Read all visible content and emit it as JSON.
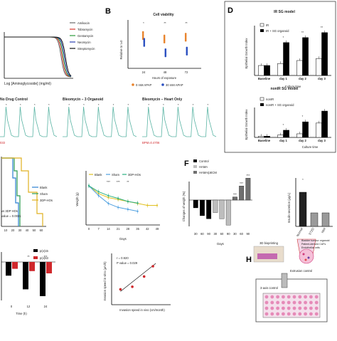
{
  "figure": {
    "panel_letters": {
      "B": "B",
      "D": "D",
      "F": "F",
      "H": "H"
    }
  },
  "chart_data": [
    {
      "panel": "A",
      "type": "line",
      "xlabel": "Log [Aminoglycoside] (mg/ml)",
      "series": [
        {
          "name": "Amikacin",
          "color": "#6b6b6b"
        },
        {
          "name": "Tobramycin",
          "color": "#d9342b"
        },
        {
          "name": "Gentamycin",
          "color": "#2b9b3a"
        },
        {
          "name": "Neomycin",
          "color": "#2a3fb0"
        },
        {
          "name": "Streptomycin",
          "color": "#111111"
        }
      ]
    },
    {
      "panel": "B",
      "type": "scatter",
      "title": "Cell viability",
      "xlabel": "Hours of exposure",
      "ylabel": "Relative to t=0",
      "categories": [
        "24",
        "48",
        "72"
      ],
      "significance": [
        "*",
        "**",
        "**"
      ],
      "series": [
        {
          "name": "0 mM APAP",
          "color": "#e8822a",
          "values": [
            0.95,
            0.85,
            0.9
          ]
        },
        {
          "name": "30 mM APAP",
          "color": "#2a4fc0",
          "values": [
            0.75,
            0.45,
            0.5
          ]
        }
      ],
      "ylim": [
        0,
        1.4
      ]
    },
    {
      "panel": "C",
      "type": "line",
      "titles": [
        "No Drug Control",
        "Bleomycin – 3 Organoid",
        "Bleomycin – Heart Only"
      ],
      "footers": [
        "033",
        "BPM=0.4706",
        ""
      ],
      "color": "#5ab4a4"
    },
    {
      "panel": "D1",
      "type": "bar",
      "title": "IR SG model",
      "ylabel": "Epithelial Growth Index",
      "xlabel": "Culture time",
      "categories": [
        "Baseline",
        "day 1",
        "day 2",
        "day 3"
      ],
      "series": [
        {
          "name": "IR",
          "color": "#ffffff",
          "values": [
            1.0,
            1.2,
            1.5,
            1.7
          ]
        },
        {
          "name": "IR + SG organoid",
          "color": "#000000",
          "values": [
            1.0,
            3.3,
            3.8,
            4.3
          ]
        }
      ],
      "significance": [
        "",
        "*",
        "**",
        "**"
      ],
      "ylim": [
        0,
        5
      ]
    },
    {
      "panel": "D2",
      "type": "bar",
      "title": "nonIR SG model",
      "ylabel": "Epithelial Growth Index",
      "xlabel": "Culture time",
      "categories": [
        "Baseline",
        "day 1",
        "day 2",
        "day 3"
      ],
      "series": [
        {
          "name": "nonIR",
          "color": "#ffffff",
          "values": [
            1.0,
            2.0,
            3.0,
            12.0
          ]
        },
        {
          "name": "nonIR + SG organoid",
          "color": "#000000",
          "values": [
            1.0,
            6.0,
            13.0,
            22.0
          ]
        }
      ],
      "significance": [
        "",
        "*",
        "*",
        ""
      ],
      "ylim": [
        0,
        25
      ]
    },
    {
      "panel": "E1",
      "type": "line",
      "series": [
        {
          "name": "Blank",
          "color": "#2a7fd0"
        },
        {
          "name": "Sham",
          "color": "#2a9b50"
        },
        {
          "name": "3DP-HOs",
          "color": "#e0b020"
        }
      ],
      "annotations": [
        "vs 3DP HOs",
        "value = 0.0031"
      ],
      "x_ticks": [
        "10",
        "20",
        "30",
        "40",
        "50",
        "60"
      ]
    },
    {
      "panel": "E2",
      "type": "line",
      "ylabel": "Weight (g)",
      "xlabel": "Days",
      "x": [
        0,
        7,
        14,
        21,
        28,
        35,
        42,
        49
      ],
      "x_ticks": [
        "0",
        "7",
        "14",
        "21",
        "28",
        "35",
        "42",
        "49"
      ],
      "series": [
        {
          "name": "Blank",
          "color": "#e0c020",
          "values": [
            25,
            23,
            22,
            21.5,
            21,
            20.5,
            20,
            20
          ]
        },
        {
          "name": "Sham",
          "color": "#4fa0e0",
          "values": [
            25,
            22.5,
            20.5,
            19.5,
            19,
            18.5,
            null,
            null
          ]
        },
        {
          "name": "3DP-HOs",
          "color": "#2ab080",
          "values": [
            25,
            23.5,
            22.5,
            21.8,
            21,
            20.6,
            null,
            null
          ]
        }
      ],
      "significance": [
        "***",
        "***",
        "**"
      ]
    },
    {
      "panel": "F1",
      "type": "bar",
      "ylabel": "Changes of weight (%)",
      "xlabel": "Days",
      "x_ticks": [
        "30",
        "60",
        "90",
        "30",
        "60",
        "90",
        "30",
        "60",
        "90"
      ],
      "series": [
        {
          "name": "Control",
          "color": "#000000",
          "values": [
            -5,
            -10,
            -12
          ]
        },
        {
          "name": "HAMA",
          "color": "#bdbdbd",
          "values": [
            -8,
            -12,
            -16
          ]
        },
        {
          "name": "HAMA/pECM",
          "color": "#6f6f6f",
          "values": [
            2,
            9,
            14
          ]
        }
      ],
      "significance": [
        "***",
        "***",
        "***"
      ]
    },
    {
      "panel": "F2",
      "type": "bar",
      "ylabel": "Insulin secretion (µg/L)",
      "categories": [
        "Normal",
        "STZD",
        "Islet"
      ],
      "values": [
        2.4,
        0.95,
        0.95
      ],
      "color": "#222222",
      "significance": [
        "*"
      ],
      "ylim": [
        0,
        3
      ]
    },
    {
      "panel": "G1",
      "type": "bar",
      "xlabel": "Time (h)",
      "categories": [
        "0",
        "12",
        "24"
      ],
      "series": [
        {
          "name": "p(v)15",
          "color": "#000000",
          "values": [
            -0.6,
            -1.2,
            -1.5
          ]
        },
        {
          "name": "p(v)63",
          "color": "#d0282c",
          "values": [
            -0.3,
            -0.4,
            -0.5
          ]
        }
      ],
      "significance": [
        "",
        "**",
        "***"
      ]
    },
    {
      "panel": "G2",
      "type": "scatter",
      "xlabel": "Invasion speed in vivo (cm/month)",
      "ylabel": "Invasion speed in vitro (µm/h)",
      "annotations": [
        "r = 0.920",
        "P value = 0.029"
      ],
      "points": [
        [
          0.15,
          0.3
        ],
        [
          0.35,
          0.35
        ],
        [
          0.55,
          0.55
        ],
        [
          0.7,
          0.75
        ]
      ],
      "color": "#d0282c"
    },
    {
      "panel": "H",
      "type": "table",
      "labels": {
        "bioprinting": "3D bioprinting",
        "legend": [
          "Bladder tumour organoid",
          "Patient-derived CAFs",
          "Endothelial cells"
        ],
        "extrusion": "Extrusion control",
        "xyz": "3-axis control"
      }
    }
  ]
}
